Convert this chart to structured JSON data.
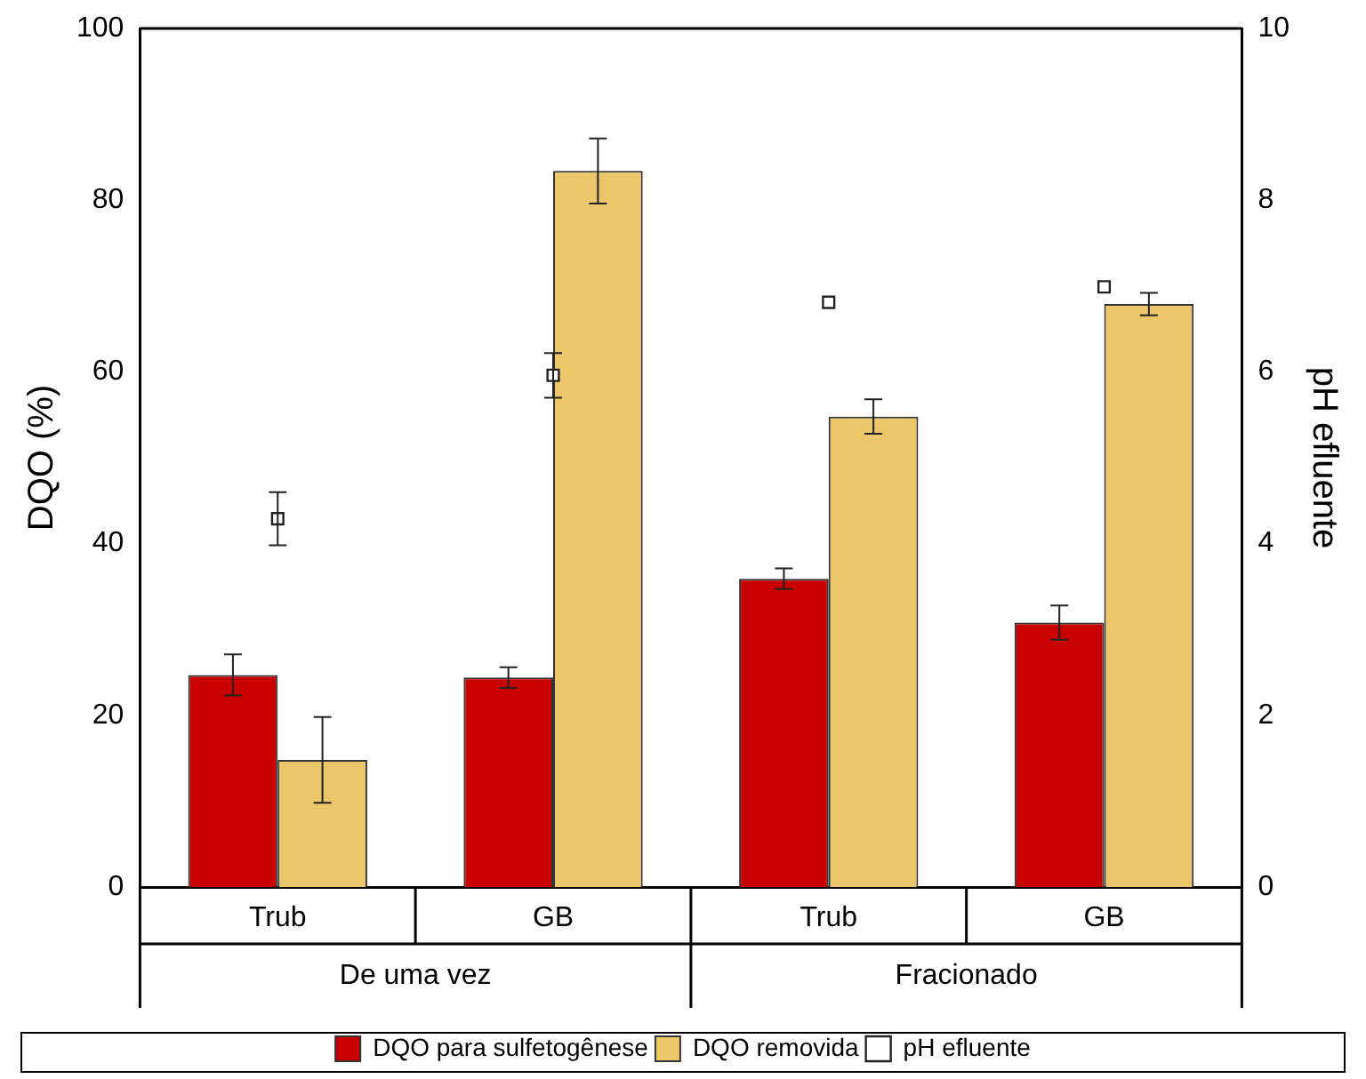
{
  "chart_data": {
    "type": "bar",
    "categories": [
      "Trub",
      "GB",
      "Trub",
      "GB"
    ],
    "annotations": [
      "De uma vez",
      "Fracionado"
    ],
    "ylabel": "DQO (%)",
    "y2label": "pH efluente",
    "ylim": [
      0,
      100
    ],
    "yticks": [
      0,
      20,
      40,
      60,
      80,
      100
    ],
    "y2lim": [
      0,
      10
    ],
    "y2ticks": [
      0,
      2,
      4,
      6,
      8,
      10
    ],
    "series": [
      {
        "name": "DQO para sulfetogênese",
        "color": "#c80000",
        "values": [
          24.7,
          24.4,
          35.9,
          30.8
        ],
        "errors": [
          2.4,
          1.2,
          1.2,
          2.0
        ]
      },
      {
        "name": "DQO removida",
        "color": "#ecc66a",
        "values": [
          14.8,
          83.4,
          54.8,
          67.9
        ],
        "errors": [
          5.0,
          3.8,
          2.0,
          1.3
        ]
      },
      {
        "name": "pH efluente",
        "type": "scatter",
        "axis": "y2",
        "marker": "square",
        "color": "#222222",
        "values": [
          4.29,
          5.96,
          6.81,
          6.99
        ],
        "errors": [
          0.31,
          0.26,
          null,
          null
        ]
      }
    ],
    "legend": "bottom",
    "grid": false
  }
}
